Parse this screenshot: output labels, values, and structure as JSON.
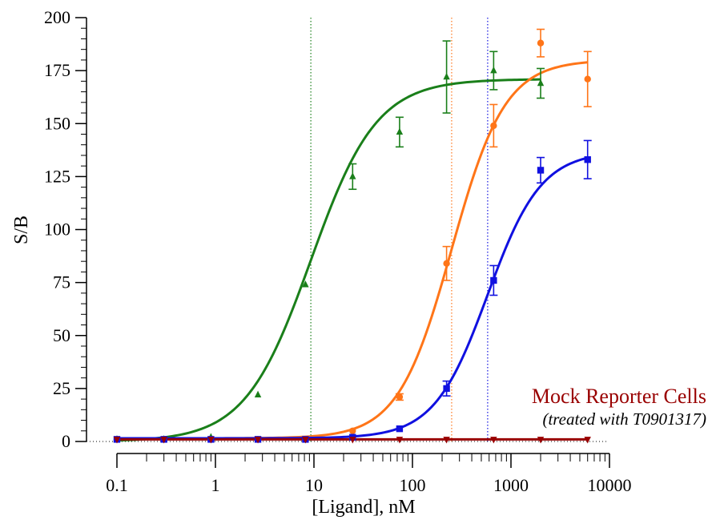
{
  "chart_data": {
    "type": "scatter",
    "title": "",
    "xlabel": "[Ligand], nM",
    "ylabel": "S/B",
    "xscale": "log",
    "xlim": [
      0.1,
      10000
    ],
    "ylim": [
      0,
      200
    ],
    "x_ticks": [
      0.1,
      1,
      10,
      100,
      1000,
      10000
    ],
    "x_tick_labels": [
      "0.1",
      "1",
      "10",
      "100",
      "1000",
      "10000"
    ],
    "y_ticks": [
      0,
      25,
      50,
      75,
      100,
      125,
      150,
      175,
      200
    ],
    "y_tick_labels": [
      "0",
      "25",
      "50",
      "75",
      "100",
      "125",
      "150",
      "175",
      "200"
    ],
    "grid": false,
    "series": [
      {
        "color": "#1a7f1a",
        "marker": "triangle-up",
        "x": [
          0.1,
          0.3,
          0.9,
          2.7,
          8.2,
          24.7,
          74,
          222,
          667,
          2000
        ],
        "y": [
          1,
          1,
          2,
          22,
          74,
          125,
          146,
          172,
          175,
          169
        ],
        "err": [
          0,
          0,
          0,
          0,
          0,
          6,
          7,
          17,
          9,
          7
        ],
        "fit": {
          "bottom": 0,
          "top": 171,
          "ec50": 9.3,
          "hill": 1.3
        }
      },
      {
        "color": "#ff7518",
        "marker": "circle",
        "x": [
          0.1,
          0.3,
          0.9,
          2.7,
          8.2,
          24.7,
          74,
          222,
          667,
          2000,
          6000
        ],
        "y": [
          1,
          1,
          1,
          1,
          1,
          5,
          21,
          84,
          149,
          188,
          171
        ],
        "err": [
          0,
          0,
          0,
          0,
          0,
          0,
          1.5,
          8,
          10,
          6.5,
          13
        ],
        "fit": {
          "bottom": 1.5,
          "top": 180,
          "ec50": 250,
          "hill": 1.6
        }
      },
      {
        "color": "#1010e0",
        "marker": "square",
        "x": [
          0.1,
          0.3,
          0.9,
          2.7,
          8.2,
          24.7,
          74,
          222,
          667,
          2000,
          6000
        ],
        "y": [
          1,
          1,
          1,
          1,
          1,
          2,
          6,
          25,
          76,
          128,
          133
        ],
        "err": [
          0,
          0,
          0,
          0,
          0,
          0,
          0,
          3.5,
          7,
          6,
          9
        ],
        "fit": {
          "bottom": 1.5,
          "top": 137,
          "ec50": 580,
          "hill": 1.6
        }
      },
      {
        "color": "#990000",
        "marker": "triangle-down",
        "x": [
          0.1,
          0.3,
          0.9,
          2.7,
          8.2,
          24.7,
          74,
          222,
          667,
          2000,
          6000
        ],
        "y": [
          1,
          1,
          1,
          1,
          1,
          1,
          1,
          1,
          1,
          1,
          1
        ],
        "err": [
          0,
          0,
          0,
          0,
          0,
          0,
          0,
          0,
          0,
          0,
          0
        ],
        "fit": {
          "bottom": 1,
          "top": 1,
          "ec50": 100,
          "hill": 1
        }
      }
    ],
    "vlines": [
      {
        "x": 9.3,
        "color": "#1a7f1a"
      },
      {
        "x": 250,
        "color": "#ff7518"
      },
      {
        "x": 580,
        "color": "#1010e0"
      }
    ],
    "annotation": {
      "title": "Mock Reporter Cells",
      "subtitle": "(treated with T0901317)",
      "color": "#990000"
    }
  }
}
